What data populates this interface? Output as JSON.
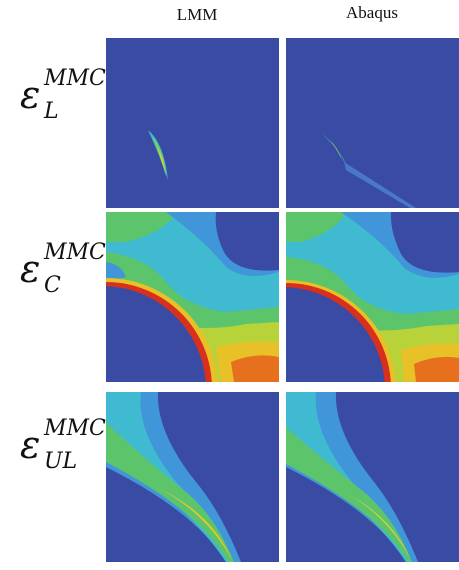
{
  "columns": [
    "LMM",
    "Abaqus"
  ],
  "rows": [
    {
      "symbol": "ε",
      "sub": "L",
      "sup": "MMC"
    },
    {
      "symbol": "ε",
      "sub": "C",
      "sup": "MMC"
    },
    {
      "symbol": "ε",
      "sub": "UL",
      "sup": "MMC"
    }
  ]
}
